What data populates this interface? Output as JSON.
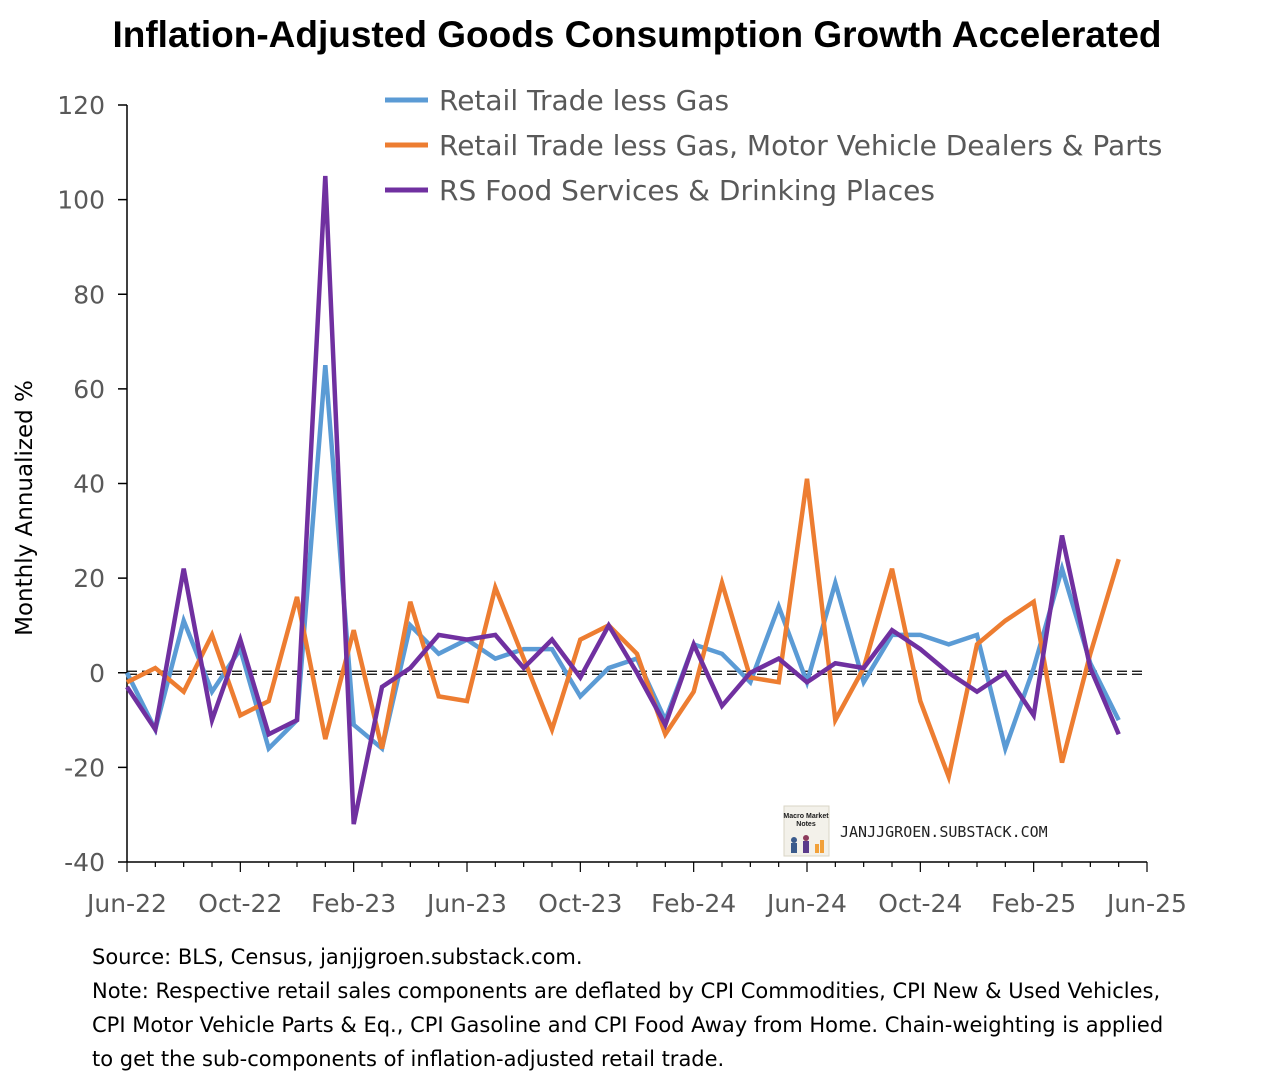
{
  "chart_data": {
    "type": "line",
    "title": "Inflation-Adjusted Goods Consumption Growth Accelerated",
    "ylabel": "Monthly Annualized %",
    "xlabel": "",
    "ylim": [
      -40,
      120
    ],
    "yticks": [
      120,
      100,
      80,
      60,
      40,
      20,
      0,
      -20,
      -40
    ],
    "xtick_labels": [
      "Jun-22",
      "Oct-22",
      "Feb-23",
      "Jun-23",
      "Oct-23",
      "Feb-24",
      "Jun-24",
      "Oct-24",
      "Feb-25",
      "Jun-25"
    ],
    "x": [
      "Jun-22",
      "Jul-22",
      "Aug-22",
      "Sep-22",
      "Oct-22",
      "Nov-22",
      "Dec-22",
      "Jan-23",
      "Feb-23",
      "Mar-23",
      "Apr-23",
      "May-23",
      "Jun-23",
      "Jul-23",
      "Aug-23",
      "Sep-23",
      "Oct-23",
      "Nov-23",
      "Dec-23",
      "Jan-24",
      "Feb-24",
      "Mar-24",
      "Apr-24",
      "May-24",
      "Jun-24",
      "Jul-24",
      "Aug-24",
      "Sep-24",
      "Oct-24",
      "Nov-24",
      "Dec-24",
      "Jan-25",
      "Feb-25",
      "Mar-25",
      "Apr-25",
      "May-25"
    ],
    "series": [
      {
        "name": "Retail Trade less Gas",
        "color": "#5B9BD5",
        "values": [
          0,
          -12,
          11,
          -4,
          5,
          -16,
          -10,
          65,
          -11,
          -16,
          10,
          4,
          7,
          3,
          5,
          5,
          -5,
          1,
          3,
          -10,
          6,
          4,
          -2,
          14,
          -2,
          19,
          -2,
          8,
          8,
          6,
          8,
          -16,
          1,
          22,
          2,
          -10
        ]
      },
      {
        "name": "Retail Trade less Gas, Motor Vehicle Dealers & Parts",
        "color": "#ED7D31",
        "values": [
          -2,
          1,
          -4,
          8,
          -9,
          -6,
          16,
          -14,
          9,
          -16,
          15,
          -5,
          -6,
          18,
          3,
          -12,
          7,
          10,
          4,
          -13,
          -4,
          19,
          -1,
          -2,
          41,
          -10,
          1,
          22,
          -6,
          -22,
          6,
          11,
          15,
          -19,
          4,
          24
        ]
      },
      {
        "name": "RS Food Services & Drinking Places",
        "color": "#7030A0",
        "values": [
          -3,
          -12,
          22,
          -10,
          7,
          -13,
          -10,
          105,
          -32,
          -3,
          1,
          8,
          7,
          8,
          1,
          7,
          -1,
          10,
          0,
          -11,
          6,
          -7,
          0,
          3,
          -2,
          2,
          1,
          9,
          5,
          0,
          -4,
          0,
          -9,
          29,
          1,
          -13
        ]
      }
    ],
    "zero_line": "dashed",
    "grid": false,
    "legend_position": "top-center"
  },
  "watermark": {
    "text": "JANJJGROEN.SUBSTACK.COM",
    "logo_text": [
      "Macro Market",
      "Notes"
    ]
  },
  "notes": {
    "source": "Source: BLS, Census, janjjgroen.substack.com.",
    "note_lines": [
      "Note: Respective retail sales components are deflated by CPI Commodities, CPI New & Used Vehicles,",
      "CPI Motor Vehicle Parts & Eq., CPI Gasoline and CPI Food Away from Home. Chain-weighting is applied",
      "to get the sub-components of inflation-adjusted retail trade."
    ]
  }
}
